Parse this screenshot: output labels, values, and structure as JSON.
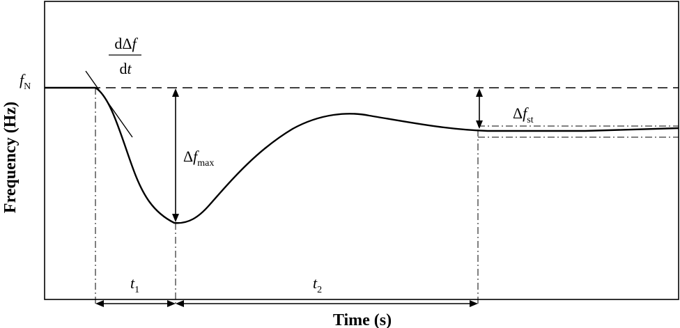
{
  "chart_data": {
    "type": "line",
    "xlabel": "Time (s)",
    "ylabel": "Frequency (Hz)",
    "grid": false,
    "legend": "none",
    "colors": {
      "curve": "#000000",
      "background": "#ffffff"
    },
    "annotations": {
      "fN": {
        "main": "f",
        "sub": "N"
      },
      "rocof": {
        "num_prefix": "dΔ",
        "num_var": "f",
        "den_prefix": "d",
        "den_var": "t"
      },
      "df_max": {
        "prefix": "Δ",
        "var": "f",
        "sub": "max"
      },
      "df_st": {
        "prefix": "Δ",
        "var": "f",
        "sub": "st"
      },
      "t1": {
        "var": "t",
        "sub": "1"
      },
      "t2": {
        "var": "t",
        "sub": "2"
      }
    }
  }
}
